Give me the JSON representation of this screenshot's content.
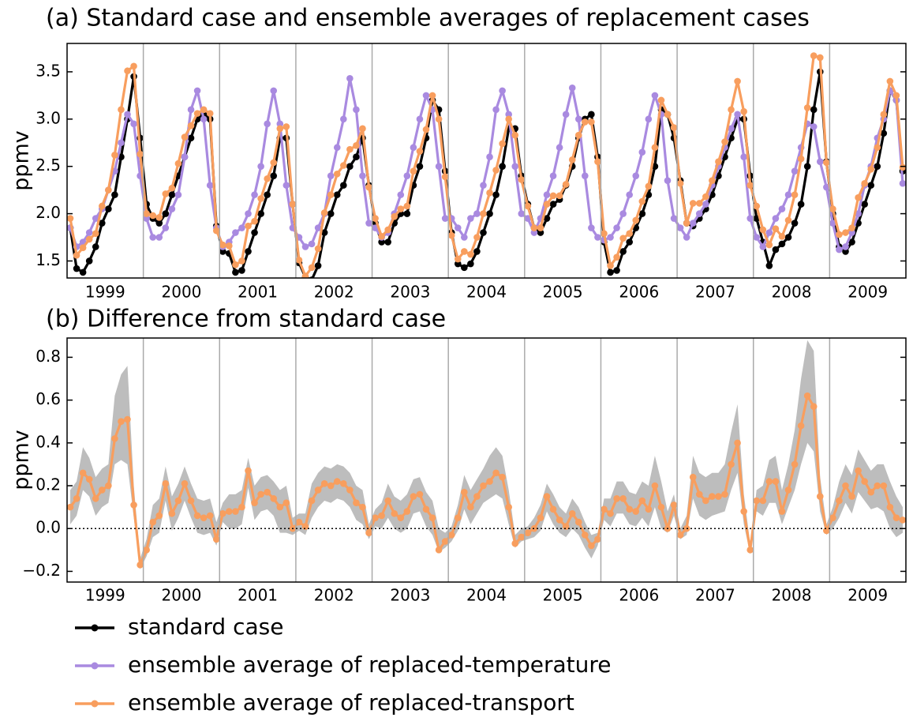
{
  "chart_data": [
    {
      "type": "line",
      "title": "(a) Standard case and ensemble averages of replacement cases",
      "y_label": "ppmv",
      "categories": [
        "1999",
        "2000",
        "2001",
        "2002",
        "2003",
        "2004",
        "2005",
        "2006",
        "2007",
        "2008",
        "2009"
      ],
      "ylim": [
        1.32,
        3.8
      ],
      "yticks": [
        1.5,
        {
          "value": 2,
          "label": "2.0"
        },
        2.5,
        {
          "value": 3,
          "label": "3.0"
        },
        3.5
      ],
      "series": [
        {
          "name": "standard case",
          "color": "#000000",
          "values": [
            [
              1.85,
              1.42,
              1.38,
              1.5,
              1.65,
              1.9,
              2.05,
              2.2,
              2.6,
              3.0,
              3.45,
              2.8
            ],
            [
              2.1,
              1.95,
              1.9,
              2.0,
              2.2,
              2.4,
              2.6,
              2.8,
              3.0,
              3.05,
              3.0,
              1.87
            ],
            [
              1.6,
              1.58,
              1.38,
              1.4,
              1.6,
              1.8,
              2.0,
              2.2,
              2.4,
              2.8,
              2.8,
              2.1
            ],
            [
              1.48,
              1.33,
              1.3,
              1.45,
              1.8,
              2.0,
              2.2,
              2.3,
              2.5,
              2.6,
              2.8,
              2.3
            ],
            [
              1.9,
              1.7,
              1.7,
              1.9,
              2.0,
              2.0,
              2.3,
              2.5,
              2.8,
              3.2,
              3.1,
              2.45
            ],
            [
              1.8,
              1.47,
              1.43,
              1.47,
              1.6,
              1.8,
              2.0,
              2.2,
              2.5,
              2.9,
              2.9,
              2.4
            ],
            [
              2.1,
              1.85,
              1.8,
              1.95,
              2.1,
              2.15,
              2.3,
              2.5,
              2.8,
              3.0,
              3.05,
              2.6
            ],
            [
              1.7,
              1.38,
              1.4,
              1.6,
              1.7,
              1.85,
              2.0,
              2.2,
              2.5,
              3.1,
              3.05,
              2.8
            ],
            [
              2.35,
              1.9,
              1.87,
              1.95,
              2.05,
              2.2,
              2.4,
              2.6,
              2.8,
              3.0,
              3.0,
              2.4
            ],
            [
              1.95,
              1.7,
              1.45,
              1.62,
              1.68,
              1.75,
              1.9,
              2.1,
              2.5,
              3.1,
              3.5,
              2.55
            ],
            [
              2.0,
              1.65,
              1.6,
              1.7,
              1.9,
              2.1,
              2.3,
              2.5,
              2.85,
              3.3,
              3.2,
              2.45
            ]
          ]
        },
        {
          "name": "ensemble average of replaced-temperature",
          "color": "#a98ae0",
          "values": [
            [
              1.85,
              1.65,
              1.7,
              1.8,
              1.95,
              2.05,
              2.25,
              2.45,
              2.75,
              3.05,
              2.95,
              2.4
            ],
            [
              1.95,
              1.75,
              1.75,
              1.85,
              2.05,
              2.2,
              2.6,
              3.1,
              3.3,
              3.0,
              2.3,
              1.85
            ],
            [
              1.65,
              1.7,
              1.8,
              1.85,
              2.0,
              2.2,
              2.5,
              2.95,
              3.3,
              2.95,
              2.3,
              1.85
            ],
            [
              1.75,
              1.65,
              1.68,
              1.85,
              2.0,
              2.4,
              2.7,
              3.0,
              3.43,
              3.1,
              2.4,
              1.9
            ],
            [
              1.85,
              1.75,
              1.8,
              2.0,
              2.2,
              2.4,
              2.7,
              3.0,
              3.25,
              3.1,
              2.5,
              1.95
            ],
            [
              1.95,
              1.85,
              1.75,
              1.95,
              2.0,
              2.3,
              2.6,
              3.1,
              3.3,
              3.05,
              2.5,
              2.0
            ],
            [
              1.95,
              1.8,
              1.95,
              2.2,
              2.4,
              2.7,
              3.05,
              3.33,
              3.0,
              2.4,
              1.85,
              1.75
            ],
            [
              1.72,
              1.75,
              1.85,
              2.0,
              2.2,
              2.4,
              2.65,
              3.0,
              3.25,
              3.05,
              2.35,
              1.95
            ],
            [
              1.85,
              1.75,
              1.9,
              2.0,
              2.1,
              2.3,
              2.5,
              2.7,
              2.9,
              3.05,
              2.6,
              1.95
            ],
            [
              1.75,
              1.65,
              1.8,
              1.95,
              2.05,
              2.2,
              2.45,
              2.7,
              2.95,
              2.92,
              2.55,
              2.28
            ],
            [
              1.9,
              1.62,
              1.65,
              1.8,
              2.0,
              2.3,
              2.5,
              2.8,
              3.0,
              3.3,
              3.2,
              2.32
            ]
          ]
        },
        {
          "name": "ensemble average of replaced-transport",
          "color": "#f89e5e",
          "values": [
            [
              1.95,
              1.56,
              1.64,
              1.73,
              1.79,
              2.08,
              2.25,
              2.62,
              3.1,
              3.51,
              3.56,
              2.63
            ],
            [
              2.0,
              1.98,
              1.96,
              2.21,
              2.27,
              2.53,
              2.81,
              2.93,
              3.06,
              3.1,
              3.06,
              1.82
            ],
            [
              1.67,
              1.66,
              1.46,
              1.5,
              1.87,
              1.92,
              2.16,
              2.37,
              2.54,
              2.9,
              2.92,
              2.1
            ],
            [
              1.51,
              1.34,
              1.43,
              1.63,
              2.01,
              2.2,
              2.42,
              2.51,
              2.68,
              2.72,
              2.9,
              2.28
            ],
            [
              1.95,
              1.76,
              1.83,
              1.97,
              2.05,
              2.08,
              2.45,
              2.66,
              2.89,
              3.25,
              3.0,
              2.39
            ],
            [
              1.77,
              1.52,
              1.6,
              1.57,
              1.75,
              2.0,
              2.22,
              2.46,
              2.74,
              3.0,
              2.83,
              2.36
            ],
            [
              2.08,
              1.85,
              1.85,
              2.1,
              2.19,
              2.19,
              2.31,
              2.57,
              2.83,
              2.97,
              2.97,
              2.55
            ],
            [
              1.79,
              1.45,
              1.54,
              1.74,
              1.79,
              1.93,
              2.13,
              2.29,
              2.7,
              3.2,
              3.05,
              2.91
            ],
            [
              2.32,
              1.9,
              2.11,
              2.11,
              2.18,
              2.35,
              2.55,
              2.76,
              3.1,
              3.4,
              3.08,
              2.3
            ],
            [
              2.08,
              1.83,
              1.67,
              1.84,
              1.76,
              1.93,
              2.2,
              2.58,
              3.12,
              3.67,
              3.65,
              2.54
            ],
            [
              2.05,
              1.78,
              1.8,
              1.85,
              2.17,
              2.32,
              2.47,
              2.7,
              3.05,
              3.4,
              3.25,
              2.49
            ]
          ]
        }
      ]
    },
    {
      "type": "line",
      "title": "(b) Difference from standard case",
      "y_label": "ppmv",
      "categories": [
        "1999",
        "2000",
        "2001",
        "2002",
        "2003",
        "2004",
        "2005",
        "2006",
        "2007",
        "2008",
        "2009"
      ],
      "ylim": [
        -0.25,
        0.89
      ],
      "yticks": [
        {
          "value": -0.2,
          "label": "−0.2"
        },
        {
          "value": 0,
          "label": "0.0"
        },
        0.2,
        0.4,
        0.6,
        0.8
      ],
      "hline": 0,
      "band": {
        "color": "#bdbdbd",
        "low": [
          [
            0.02,
            0.06,
            0.18,
            0.15,
            0.06,
            0.1,
            0.12,
            0.3,
            0.32,
            0.3,
            0.05,
            -0.19
          ],
          [
            -0.13,
            -0.04,
            -0.02,
            0.13,
            -0.01,
            0.05,
            0.13,
            0.05,
            -0.02,
            -0.03,
            -0.02,
            -0.08
          ],
          [
            0.03,
            0.0,
            0.0,
            0.02,
            0.19,
            0.04,
            0.08,
            0.09,
            0.06,
            -0.02,
            -0.02,
            -0.03
          ],
          [
            -0.01,
            -0.03,
            0.05,
            0.1,
            0.13,
            0.12,
            0.14,
            0.13,
            0.1,
            0.04,
            0.02,
            -0.05
          ],
          [
            0.01,
            0.0,
            0.05,
            0.0,
            -0.02,
            0.0,
            0.07,
            0.08,
            0.01,
            -0.03,
            -0.11,
            -0.09
          ],
          [
            -0.06,
            -0.01,
            0.09,
            0.02,
            0.07,
            0.12,
            0.14,
            0.16,
            0.14,
            0.02,
            -0.09,
            -0.06
          ],
          [
            -0.05,
            -0.04,
            -0.01,
            0.08,
            0.02,
            -0.02,
            -0.04,
            0.0,
            -0.03,
            -0.09,
            -0.14,
            -0.08
          ],
          [
            0.04,
            0.01,
            0.07,
            0.07,
            0.02,
            0.01,
            0.05,
            0.01,
            0.1,
            0.0,
            -0.02,
            0.06
          ],
          [
            -0.05,
            -0.03,
            0.14,
            0.06,
            0.04,
            0.06,
            0.07,
            0.08,
            0.18,
            0.26,
            0.02,
            -0.12
          ],
          [
            0.08,
            0.06,
            0.12,
            0.12,
            0.02,
            0.1,
            0.18,
            0.3,
            0.4,
            0.36,
            0.08,
            -0.03
          ],
          [
            0.0,
            0.05,
            0.12,
            0.07,
            0.17,
            0.13,
            0.09,
            0.1,
            0.08,
            0.0,
            -0.04,
            -0.02
          ]
        ],
        "high": [
          [
            0.18,
            0.22,
            0.38,
            0.33,
            0.24,
            0.28,
            0.3,
            0.62,
            0.72,
            0.76,
            0.2,
            -0.14
          ],
          [
            -0.05,
            0.11,
            0.14,
            0.29,
            0.15,
            0.21,
            0.29,
            0.21,
            0.14,
            0.13,
            0.14,
            0.03
          ],
          [
            0.12,
            0.16,
            0.16,
            0.18,
            0.33,
            0.2,
            0.24,
            0.25,
            0.22,
            0.18,
            0.2,
            0.05
          ],
          [
            0.07,
            0.07,
            0.21,
            0.26,
            0.29,
            0.28,
            0.3,
            0.29,
            0.26,
            0.2,
            0.18,
            0.02
          ],
          [
            0.09,
            0.12,
            0.21,
            0.15,
            0.13,
            0.16,
            0.23,
            0.24,
            0.17,
            0.13,
            0.0,
            -0.02
          ],
          [
            0.01,
            0.11,
            0.25,
            0.18,
            0.23,
            0.28,
            0.34,
            0.38,
            0.34,
            0.18,
            -0.03,
            0.0
          ],
          [
            0.01,
            0.05,
            0.11,
            0.21,
            0.16,
            0.1,
            0.07,
            0.14,
            0.1,
            0.03,
            -0.03,
            -0.02
          ],
          [
            0.14,
            0.14,
            0.22,
            0.22,
            0.17,
            0.16,
            0.22,
            0.2,
            0.34,
            0.22,
            0.08,
            0.16
          ],
          [
            0.0,
            0.06,
            0.34,
            0.26,
            0.24,
            0.26,
            0.26,
            0.3,
            0.45,
            0.58,
            0.16,
            -0.07
          ],
          [
            0.18,
            0.2,
            0.32,
            0.34,
            0.18,
            0.3,
            0.46,
            0.7,
            0.88,
            0.83,
            0.24,
            0.02
          ],
          [
            0.1,
            0.22,
            0.3,
            0.25,
            0.37,
            0.32,
            0.27,
            0.3,
            0.3,
            0.22,
            0.15,
            0.1
          ]
        ]
      },
      "series": [
        {
          "color": "#f89e5e",
          "values": [
            [
              0.1,
              0.14,
              0.26,
              0.23,
              0.14,
              0.18,
              0.2,
              0.42,
              0.5,
              0.51,
              0.11,
              -0.17
            ],
            [
              -0.1,
              0.03,
              0.06,
              0.21,
              0.07,
              0.13,
              0.21,
              0.13,
              0.06,
              0.05,
              0.06,
              -0.05
            ],
            [
              0.07,
              0.08,
              0.08,
              0.1,
              0.27,
              0.12,
              0.16,
              0.17,
              0.14,
              0.1,
              0.12,
              0.0
            ],
            [
              0.03,
              0.01,
              0.13,
              0.18,
              0.21,
              0.2,
              0.22,
              0.21,
              0.18,
              0.12,
              0.1,
              -0.02
            ],
            [
              0.05,
              0.06,
              0.13,
              0.07,
              0.05,
              0.08,
              0.15,
              0.16,
              0.09,
              0.05,
              -0.1,
              -0.06
            ],
            [
              -0.03,
              0.05,
              0.17,
              0.1,
              0.15,
              0.2,
              0.22,
              0.26,
              0.24,
              0.1,
              -0.07,
              -0.04
            ],
            [
              -0.02,
              0.0,
              0.05,
              0.15,
              0.09,
              0.04,
              0.01,
              0.07,
              0.03,
              -0.03,
              -0.08,
              -0.05
            ],
            [
              0.09,
              0.07,
              0.14,
              0.14,
              0.09,
              0.08,
              0.13,
              0.09,
              0.2,
              0.1,
              0.0,
              0.11
            ],
            [
              -0.03,
              0.0,
              0.24,
              0.16,
              0.13,
              0.15,
              0.15,
              0.16,
              0.3,
              0.4,
              0.08,
              -0.1
            ],
            [
              0.13,
              0.13,
              0.22,
              0.22,
              0.08,
              0.18,
              0.3,
              0.48,
              0.62,
              0.57,
              0.15,
              -0.01
            ],
            [
              0.05,
              0.13,
              0.2,
              0.15,
              0.27,
              0.22,
              0.17,
              0.2,
              0.2,
              0.1,
              0.05,
              0.04
            ]
          ]
        }
      ]
    }
  ]
}
